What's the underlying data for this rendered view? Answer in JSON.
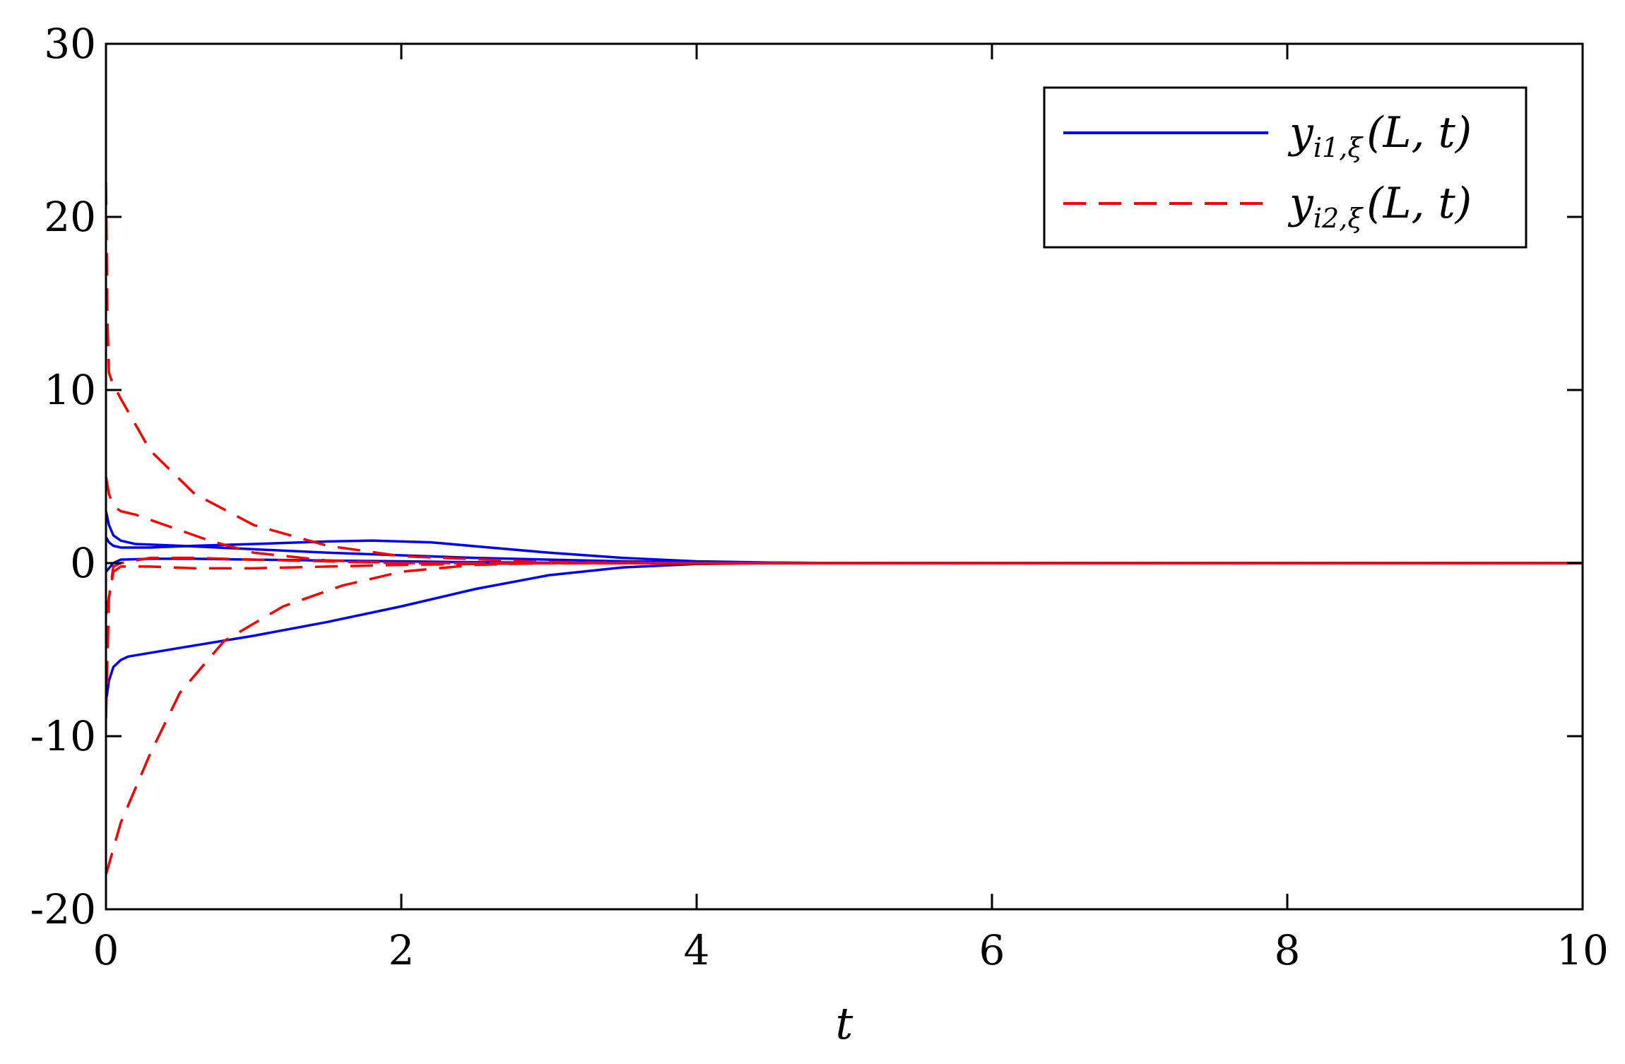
{
  "chart_data": {
    "type": "line",
    "title": "",
    "xlabel": "t",
    "ylabel": "",
    "xlim": [
      0,
      10
    ],
    "ylim": [
      -20,
      30
    ],
    "xticks": [
      0,
      2,
      4,
      6,
      8,
      10
    ],
    "yticks": [
      -20,
      -10,
      0,
      10,
      20,
      30
    ],
    "xtick_labels": [
      "0",
      "2",
      "4",
      "6",
      "8",
      "10"
    ],
    "ytick_labels": [
      "-20",
      "-10",
      "0",
      "10",
      "20",
      "30"
    ],
    "grid": false,
    "legend_position": "top-right",
    "legend": [
      {
        "main": "y",
        "sub": "i1,ξ",
        "args": "(L, t)",
        "color": "#0000ff",
        "style": "solid"
      },
      {
        "main": "y",
        "sub": "i2,ξ",
        "args": "(L, t)",
        "color": "#ff0000",
        "style": "dashed"
      }
    ],
    "series": [
      {
        "group": "yi1",
        "color": "#0000ff",
        "style": "solid",
        "x": [
          0,
          0.02,
          0.05,
          0.1,
          0.2,
          0.5,
          1,
          1.5,
          2,
          2.5,
          3,
          3.5,
          4,
          5,
          6,
          10
        ],
        "y": [
          3,
          2.2,
          1.6,
          1.3,
          1.1,
          1.0,
          0.8,
          0.6,
          0.45,
          0.3,
          0.2,
          0.1,
          0.05,
          0,
          0,
          0
        ]
      },
      {
        "group": "yi1",
        "color": "#0000ff",
        "style": "solid",
        "x": [
          0,
          0.02,
          0.05,
          0.1,
          0.3,
          0.6,
          1,
          1.5,
          1.8,
          2.2,
          2.6,
          3,
          3.5,
          4,
          4.5,
          5,
          6,
          10
        ],
        "y": [
          1.5,
          1.2,
          1.0,
          0.9,
          0.9,
          1.0,
          1.1,
          1.25,
          1.3,
          1.2,
          0.9,
          0.6,
          0.3,
          0.1,
          0.03,
          0,
          0,
          0
        ]
      },
      {
        "group": "yi1",
        "color": "#0000ff",
        "style": "solid",
        "x": [
          0,
          0.05,
          0.1,
          0.3,
          0.6,
          1,
          1.5,
          2,
          2.5,
          3,
          4,
          5,
          10
        ],
        "y": [
          -0.5,
          0,
          0.2,
          0.25,
          0.25,
          0.2,
          0.15,
          0.1,
          0.05,
          0.02,
          0,
          0,
          0
        ]
      },
      {
        "group": "yi1",
        "color": "#0000ff",
        "style": "solid",
        "x": [
          0,
          0.02,
          0.05,
          0.1,
          0.15,
          0.5,
          1,
          1.5,
          2,
          2.5,
          3,
          3.5,
          4,
          4.5,
          5,
          6,
          10
        ],
        "y": [
          -8,
          -6.8,
          -6,
          -5.6,
          -5.4,
          -4.9,
          -4.2,
          -3.4,
          -2.5,
          -1.5,
          -0.7,
          -0.25,
          -0.05,
          0,
          0,
          0,
          0
        ]
      },
      {
        "group": "yi2",
        "color": "#ff0000",
        "style": "dashed",
        "x": [
          0,
          0.005,
          0.01,
          0.02,
          0.04,
          0.1,
          0.3,
          0.6,
          1,
          1.5,
          2,
          3,
          4,
          5,
          10
        ],
        "y": [
          22,
          18,
          14,
          11,
          10.5,
          9.5,
          6.5,
          4,
          2.2,
          1,
          0.4,
          0.05,
          0,
          0,
          0
        ]
      },
      {
        "group": "yi2",
        "color": "#ff0000",
        "style": "dashed",
        "x": [
          0,
          0.02,
          0.05,
          0.1,
          0.2,
          0.4,
          0.7,
          1,
          1.5,
          2,
          3,
          4,
          10
        ],
        "y": [
          5,
          4,
          3.3,
          3,
          2.8,
          2.2,
          1.3,
          0.6,
          0.15,
          0,
          0,
          0,
          0
        ]
      },
      {
        "group": "yi2",
        "color": "#ff0000",
        "style": "dashed",
        "x": [
          0,
          0.05,
          0.1,
          0.3,
          0.6,
          1,
          1.5,
          2,
          2.5,
          3,
          4,
          10
        ],
        "y": [
          -3,
          -0.5,
          -0.2,
          -0.2,
          -0.3,
          -0.3,
          -0.2,
          -0.1,
          -0.05,
          0,
          0,
          0
        ]
      },
      {
        "group": "yi2",
        "color": "#ff0000",
        "style": "dashed",
        "x": [
          0,
          0.05,
          0.1,
          0.3,
          0.5,
          0.8,
          1.2,
          1.6,
          2,
          2.5,
          3,
          4,
          10
        ],
        "y": [
          -18,
          -16.5,
          -15,
          -11,
          -7.5,
          -4.5,
          -2.5,
          -1.3,
          -0.5,
          -0.1,
          0,
          0,
          0
        ]
      },
      {
        "group": "yi2",
        "color": "#ff0000",
        "style": "dashed",
        "x": [
          0,
          0.02,
          0.05,
          0.1,
          0.3,
          0.6,
          1,
          1.5,
          2,
          3,
          10
        ],
        "y": [
          -9,
          -2,
          -0.2,
          0,
          0.3,
          0.3,
          0.2,
          0.1,
          0,
          0,
          0
        ]
      }
    ]
  }
}
